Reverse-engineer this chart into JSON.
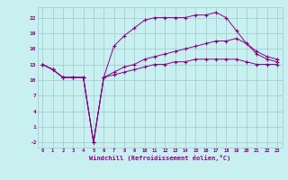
{
  "x": [
    0,
    1,
    2,
    3,
    4,
    5,
    6,
    7,
    8,
    9,
    10,
    11,
    12,
    13,
    14,
    15,
    16,
    17,
    18,
    19,
    20,
    21,
    22,
    23
  ],
  "line1": [
    13,
    12,
    10.5,
    10.5,
    10.5,
    -2,
    10.5,
    16.5,
    18.5,
    20,
    21.5,
    22,
    22,
    22,
    22,
    22.5,
    22.5,
    23,
    22,
    19.5,
    17,
    15.5,
    14.5,
    14
  ],
  "line2": [
    13,
    12,
    10.5,
    10.5,
    10.5,
    -2,
    10.5,
    11.5,
    12.5,
    13,
    14,
    14.5,
    15,
    15.5,
    16,
    16.5,
    17,
    17.5,
    17.5,
    18,
    17,
    15,
    14,
    13.5
  ],
  "line3": [
    13,
    12,
    10.5,
    10.5,
    10.5,
    -2,
    10.5,
    11,
    11.5,
    12,
    12.5,
    13,
    13,
    13.5,
    13.5,
    14,
    14,
    14,
    14,
    14,
    13.5,
    13,
    13,
    13
  ],
  "line_color": "#880088",
  "bg_color": "#c8f0f0",
  "grid_color": "#a0c8c8",
  "xlabel": "Windchill (Refroidissement éolien,°C)",
  "ylim": [
    -3,
    24
  ],
  "xlim": [
    -0.5,
    23.5
  ],
  "yticks": [
    -2,
    1,
    4,
    7,
    10,
    13,
    16,
    19,
    22
  ],
  "xticks": [
    0,
    1,
    2,
    3,
    4,
    5,
    6,
    7,
    8,
    9,
    10,
    11,
    12,
    13,
    14,
    15,
    16,
    17,
    18,
    19,
    20,
    21,
    22,
    23
  ]
}
